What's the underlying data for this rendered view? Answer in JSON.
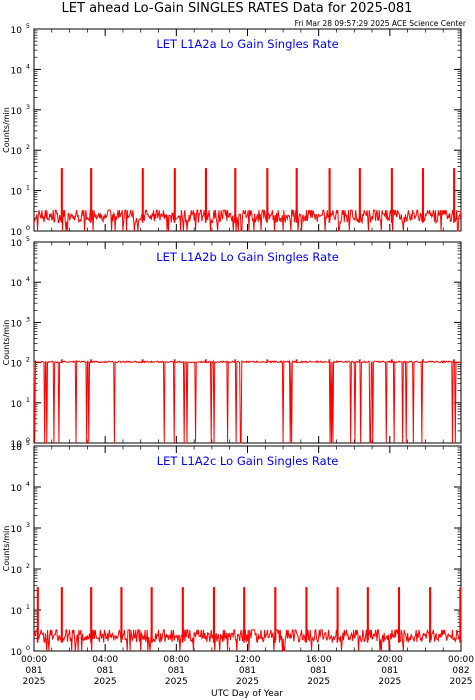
{
  "header": {
    "title": "LET ahead Lo-Gain SINGLES RATES Data for 2025-081",
    "timestamp": "Fri Mar 28 09:57:29 2025 ACE Science Center"
  },
  "chart_data": [
    {
      "type": "line",
      "title": "LET L1A2a Lo Gain Singles Rate",
      "ylabel": "Counts/min",
      "yscale": "log",
      "ylim": [
        1,
        100000
      ],
      "yticks": [
        {
          "base": "10",
          "exp": "0"
        },
        {
          "base": "10",
          "exp": "1"
        },
        {
          "base": "10",
          "exp": "2"
        },
        {
          "base": "10",
          "exp": "3"
        },
        {
          "base": "10",
          "exp": "4"
        },
        {
          "base": "10",
          "exp": "5"
        }
      ],
      "xlim": [
        0,
        24
      ],
      "xlabel": "",
      "color": "#ff0000",
      "series": [
        {
          "baseline": 1.6,
          "noise_max": 2.8,
          "spike_hours": [
            1.55,
            3.2,
            6.1,
            7.9,
            9.65,
            11.3,
            13.1,
            14.75,
            16.6,
            18.3,
            20.1,
            21.85,
            23.6
          ],
          "spike_value": 36
        }
      ]
    },
    {
      "type": "line",
      "title": "LET L1A2b Lo Gain Singles Rate",
      "ylabel": "Counts/min",
      "yscale": "log",
      "ylim": [
        1,
        100000
      ],
      "yticks": [
        {
          "base": "10",
          "exp": "0"
        },
        {
          "base": "10",
          "exp": "1"
        },
        {
          "base": "10",
          "exp": "2"
        },
        {
          "base": "10",
          "exp": "3"
        },
        {
          "base": "10",
          "exp": "4"
        },
        {
          "base": "10",
          "exp": "5"
        }
      ],
      "xlim": [
        0,
        24
      ],
      "xlabel": "",
      "color": "#ff0000",
      "series": [
        {
          "baseline": 100,
          "noise_max": 106,
          "spike_hours": [
            1.55,
            3.2,
            6.1,
            7.9,
            9.65,
            11.3,
            13.1,
            14.75,
            16.6,
            18.3,
            20.1,
            21.85,
            23.6
          ],
          "spike_value": 120
        }
      ]
    },
    {
      "type": "line",
      "title": "LET L1A2c Lo Gain Singles Rate",
      "ylabel": "Counts/min",
      "yscale": "log",
      "ylim": [
        1,
        100000
      ],
      "yticks": [
        {
          "base": "10",
          "exp": "0"
        },
        {
          "base": "10",
          "exp": "1"
        },
        {
          "base": "10",
          "exp": "2"
        },
        {
          "base": "10",
          "exp": "3"
        },
        {
          "base": "10",
          "exp": "4"
        },
        {
          "base": "10",
          "exp": "5"
        }
      ],
      "xlim": [
        0,
        24
      ],
      "xlabel": "UTC Day of Year",
      "xticks": [
        {
          "time": "00:00",
          "doy": "081",
          "year": "2025"
        },
        {
          "time": "04:00",
          "doy": "081",
          "year": "2025"
        },
        {
          "time": "08:00",
          "doy": "081",
          "year": "2025"
        },
        {
          "time": "12:00",
          "doy": "081",
          "year": "2025"
        },
        {
          "time": "16:00",
          "doy": "081",
          "year": "2025"
        },
        {
          "time": "20:00",
          "doy": "081",
          "year": "2025"
        },
        {
          "time": "00:00",
          "doy": "082",
          "year": "2025"
        }
      ],
      "color": "#ff0000",
      "series": [
        {
          "baseline": 1.6,
          "noise_max": 2.8,
          "spike_hours": [
            0.2,
            1.55,
            3.2,
            4.9,
            6.6,
            8.35,
            10.1,
            11.8,
            13.55,
            15.3,
            17.05,
            18.75,
            20.5,
            22.25,
            23.95
          ],
          "spike_value": 36
        }
      ]
    }
  ]
}
